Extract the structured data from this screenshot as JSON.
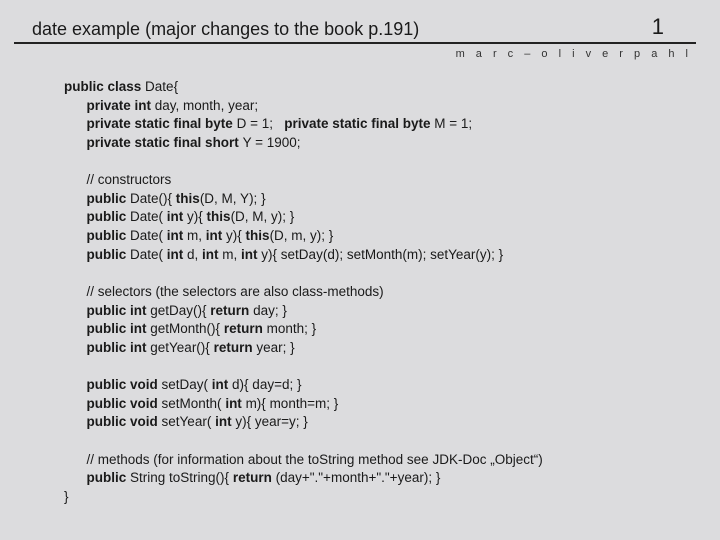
{
  "header": {
    "title": "date example (major changes to the book p.191)",
    "page": "1",
    "author": "m a r c – o l i v e r  p a h l"
  },
  "code": {
    "lines": [
      [
        [
          "b",
          "public class "
        ],
        [
          "",
          "Date{"
        ]
      ],
      [
        [
          "",
          "      "
        ],
        [
          "b",
          "private int "
        ],
        [
          "",
          "day, month, year;"
        ]
      ],
      [
        [
          "",
          "      "
        ],
        [
          "b",
          "private static final byte "
        ],
        [
          "",
          "D = 1;   "
        ],
        [
          "b",
          "private static final byte "
        ],
        [
          "",
          "M = 1;"
        ]
      ],
      [
        [
          "",
          "      "
        ],
        [
          "b",
          "private static final short "
        ],
        [
          "",
          "Y = 1900;"
        ]
      ],
      [
        [
          "",
          ""
        ]
      ],
      [
        [
          "",
          "      // constructors"
        ]
      ],
      [
        [
          "",
          "      "
        ],
        [
          "b",
          "public "
        ],
        [
          "",
          "Date(){ "
        ],
        [
          "b",
          "this"
        ],
        [
          "",
          "(D, M, Y); }"
        ]
      ],
      [
        [
          "",
          "      "
        ],
        [
          "b",
          "public "
        ],
        [
          "",
          "Date( "
        ],
        [
          "b",
          "int "
        ],
        [
          "",
          "y){ "
        ],
        [
          "b",
          "this"
        ],
        [
          "",
          "(D, M, y); }"
        ]
      ],
      [
        [
          "",
          "      "
        ],
        [
          "b",
          "public "
        ],
        [
          "",
          "Date( "
        ],
        [
          "b",
          "int "
        ],
        [
          "",
          "m, "
        ],
        [
          "b",
          "int "
        ],
        [
          "",
          "y){ "
        ],
        [
          "b",
          "this"
        ],
        [
          "",
          "(D, m, y); }"
        ]
      ],
      [
        [
          "",
          "      "
        ],
        [
          "b",
          "public "
        ],
        [
          "",
          "Date( "
        ],
        [
          "b",
          "int "
        ],
        [
          "",
          "d, "
        ],
        [
          "b",
          "int "
        ],
        [
          "",
          "m, "
        ],
        [
          "b",
          "int "
        ],
        [
          "",
          "y){ setDay(d); setMonth(m); setYear(y); }"
        ]
      ],
      [
        [
          "",
          ""
        ]
      ],
      [
        [
          "",
          "      // selectors (the selectors are also class-methods)"
        ]
      ],
      [
        [
          "",
          "      "
        ],
        [
          "b",
          "public int "
        ],
        [
          "",
          "getDay(){ "
        ],
        [
          "b",
          "return "
        ],
        [
          "",
          "day; }"
        ]
      ],
      [
        [
          "",
          "      "
        ],
        [
          "b",
          "public int "
        ],
        [
          "",
          "getMonth(){ "
        ],
        [
          "b",
          "return "
        ],
        [
          "",
          "month; }"
        ]
      ],
      [
        [
          "",
          "      "
        ],
        [
          "b",
          "public int "
        ],
        [
          "",
          "getYear(){ "
        ],
        [
          "b",
          "return "
        ],
        [
          "",
          "year; }"
        ]
      ],
      [
        [
          "",
          ""
        ]
      ],
      [
        [
          "",
          "      "
        ],
        [
          "b",
          "public void "
        ],
        [
          "",
          "setDay( "
        ],
        [
          "b",
          "int "
        ],
        [
          "",
          "d){ day=d; }"
        ]
      ],
      [
        [
          "",
          "      "
        ],
        [
          "b",
          "public void "
        ],
        [
          "",
          "setMonth( "
        ],
        [
          "b",
          "int "
        ],
        [
          "",
          "m){ month=m; }"
        ]
      ],
      [
        [
          "",
          "      "
        ],
        [
          "b",
          "public void "
        ],
        [
          "",
          "setYear( "
        ],
        [
          "b",
          "int "
        ],
        [
          "",
          "y){ year=y; }"
        ]
      ],
      [
        [
          "",
          ""
        ]
      ],
      [
        [
          "",
          "      // methods (for information about the toString method see JDK-Doc „Object“)"
        ]
      ],
      [
        [
          "",
          "      "
        ],
        [
          "b",
          "public "
        ],
        [
          "",
          "String toString(){ "
        ],
        [
          "b",
          "return "
        ],
        [
          "",
          "(day+\".\"+month+\".\"+year); }"
        ]
      ],
      [
        [
          "",
          "}"
        ]
      ]
    ]
  },
  "colors": {
    "background": "#dcdcde",
    "text": "#1a1a1a",
    "rule": "#222"
  }
}
